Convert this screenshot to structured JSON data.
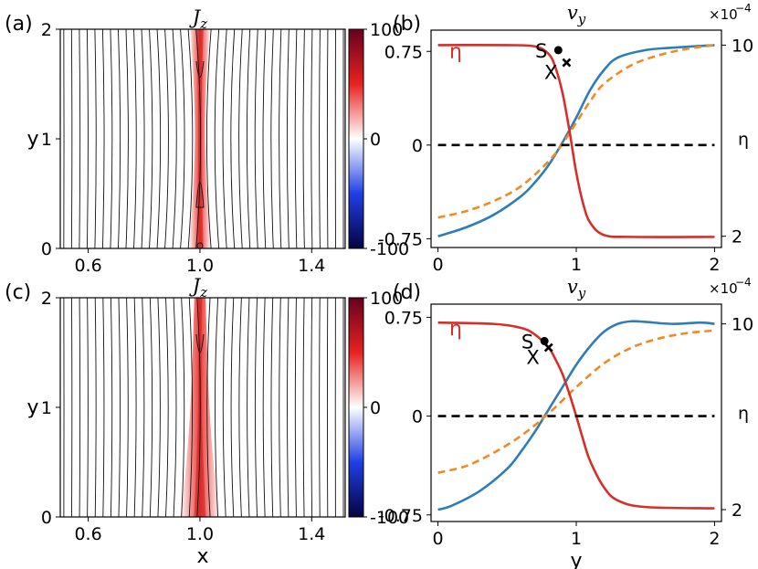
{
  "chart_data": [
    {
      "panel": "(a)",
      "type": "heatmap",
      "title": "J_z",
      "xlabel": "",
      "ylabel": "y",
      "xticks": [
        "0.6",
        "1.0",
        "1.4"
      ],
      "yticks": [
        "0",
        "1",
        "2"
      ],
      "xlim": [
        0.5,
        1.52
      ],
      "ylim": [
        0,
        2
      ],
      "colorbar": {
        "min": -100,
        "max": 100,
        "ticks": [
          "100",
          "0",
          "-100"
        ],
        "colors": [
          "#67001f",
          "#e8231f",
          "#ffffff",
          "#1f3fe6",
          "#05033f"
        ]
      },
      "field_lines": 36,
      "current_sheet": {
        "center_x": 1.0,
        "halfwidth_top": 0.035,
        "halfwidth_mid": 0.012,
        "halfwidth_bottom": 0.04
      }
    },
    {
      "panel": "(b)",
      "type": "line",
      "title": "v_y",
      "xlabel": "",
      "ylabel_left": "",
      "ylabel_right": "η",
      "xticks": [
        "0",
        "1",
        "2"
      ],
      "yticks_left": [
        "0.75",
        "0",
        "-0.75"
      ],
      "yticks_right": [
        "10",
        "2"
      ],
      "multiplier": "×10",
      "multiplier_exp": "−4",
      "xlim": [
        -0.05,
        2.05
      ],
      "ylim": [
        -0.82,
        0.92
      ],
      "series": [
        {
          "name": "v_y",
          "color": "#2f7db8",
          "style": "solid",
          "x": [
            0,
            0.2,
            0.4,
            0.6,
            0.7,
            0.8,
            0.9,
            1.0,
            1.1,
            1.2,
            1.3,
            1.5,
            1.7,
            2.0
          ],
          "values": [
            -0.73,
            -0.66,
            -0.56,
            -0.41,
            -0.3,
            -0.16,
            0.02,
            0.22,
            0.44,
            0.6,
            0.7,
            0.76,
            0.78,
            0.8
          ]
        },
        {
          "name": "dashed",
          "color": "#f08a24",
          "style": "dashed",
          "x": [
            0,
            0.2,
            0.4,
            0.6,
            0.8,
            0.9,
            1.0,
            1.1,
            1.2,
            1.4,
            1.6,
            1.8,
            2.0
          ],
          "values": [
            -0.58,
            -0.53,
            -0.45,
            -0.33,
            -0.13,
            0.01,
            0.18,
            0.35,
            0.49,
            0.64,
            0.72,
            0.77,
            0.8
          ]
        },
        {
          "name": "η",
          "color": "#d62f2a",
          "style": "solid",
          "x": [
            0,
            0.5,
            0.7,
            0.8,
            0.85,
            0.9,
            0.95,
            1.0,
            1.05,
            1.1,
            1.2,
            1.4,
            2.0
          ],
          "values": [
            0.8,
            0.8,
            0.79,
            0.73,
            0.62,
            0.42,
            0.12,
            -0.22,
            -0.47,
            -0.62,
            -0.72,
            -0.735,
            -0.735
          ]
        },
        {
          "name": "zero",
          "color": "#000000",
          "style": "dashed",
          "x": [
            0,
            2
          ],
          "values": [
            0,
            0
          ]
        }
      ],
      "markers": [
        {
          "label": "S",
          "x": 0.87,
          "y": 0.76,
          "shape": "dot"
        },
        {
          "label": "X",
          "x": 0.93,
          "y": 0.66,
          "shape": "cross"
        }
      ],
      "eta_label": "η"
    },
    {
      "panel": "(c)",
      "type": "heatmap",
      "title": "J_z",
      "xlabel": "x",
      "ylabel": "y",
      "xticks": [
        "0.6",
        "1.0",
        "1.4"
      ],
      "yticks": [
        "0",
        "1",
        "2"
      ],
      "xlim": [
        0.5,
        1.52
      ],
      "ylim": [
        0,
        2
      ],
      "colorbar": {
        "min": -100,
        "max": 100,
        "ticks": [
          "100",
          "0",
          "-100"
        ],
        "colors": [
          "#67001f",
          "#e8231f",
          "#ffffff",
          "#1f3fe6",
          "#05033f"
        ]
      },
      "field_lines": 36,
      "current_sheet": {
        "center_x": 1.0,
        "halfwidth_top": 0.02,
        "halfwidth_mid": 0.03,
        "halfwidth_bottom": 0.07
      }
    },
    {
      "panel": "(d)",
      "type": "line",
      "title": "v_y",
      "xlabel": "y",
      "ylabel_left": "",
      "ylabel_right": "η",
      "xticks": [
        "0",
        "1",
        "2"
      ],
      "yticks_left": [
        "0.75",
        "0",
        "-0.75"
      ],
      "yticks_right": [
        "10",
        "2"
      ],
      "multiplier": "×10",
      "multiplier_exp": "−4",
      "xlim": [
        -0.05,
        2.05
      ],
      "ylim": [
        -0.8,
        0.85
      ],
      "series": [
        {
          "name": "v_y",
          "color": "#2f7db8",
          "style": "solid",
          "x": [
            0,
            0.1,
            0.3,
            0.5,
            0.6,
            0.7,
            0.8,
            0.9,
            1.0,
            1.1,
            1.2,
            1.3,
            1.4,
            1.5,
            1.7,
            1.9,
            2.0
          ],
          "values": [
            -0.71,
            -0.68,
            -0.57,
            -0.4,
            -0.27,
            -0.12,
            0.05,
            0.22,
            0.39,
            0.53,
            0.64,
            0.7,
            0.72,
            0.715,
            0.7,
            0.71,
            0.7
          ]
        },
        {
          "name": "dashed",
          "color": "#f08a24",
          "style": "dashed",
          "x": [
            0,
            0.2,
            0.4,
            0.6,
            0.8,
            1.0,
            1.2,
            1.4,
            1.6,
            1.8,
            2.0
          ],
          "values": [
            -0.43,
            -0.38,
            -0.28,
            -0.15,
            0.02,
            0.22,
            0.4,
            0.52,
            0.59,
            0.63,
            0.65
          ]
        },
        {
          "name": "η",
          "color": "#d62f2a",
          "style": "solid",
          "x": [
            0,
            0.4,
            0.6,
            0.7,
            0.8,
            0.85,
            0.9,
            0.95,
            1.0,
            1.05,
            1.1,
            1.2,
            1.3,
            1.5,
            2.0
          ],
          "values": [
            0.71,
            0.7,
            0.67,
            0.62,
            0.52,
            0.43,
            0.32,
            0.17,
            0.0,
            -0.18,
            -0.34,
            -0.54,
            -0.64,
            -0.69,
            -0.7
          ]
        },
        {
          "name": "zero",
          "color": "#000000",
          "style": "dashed",
          "x": [
            0,
            2
          ],
          "values": [
            0,
            0
          ]
        }
      ],
      "markers": [
        {
          "label": "S",
          "x": 0.77,
          "y": 0.57,
          "shape": "dot"
        },
        {
          "label": "X",
          "x": 0.8,
          "y": 0.52,
          "shape": "cross"
        }
      ],
      "eta_label": "η"
    }
  ]
}
